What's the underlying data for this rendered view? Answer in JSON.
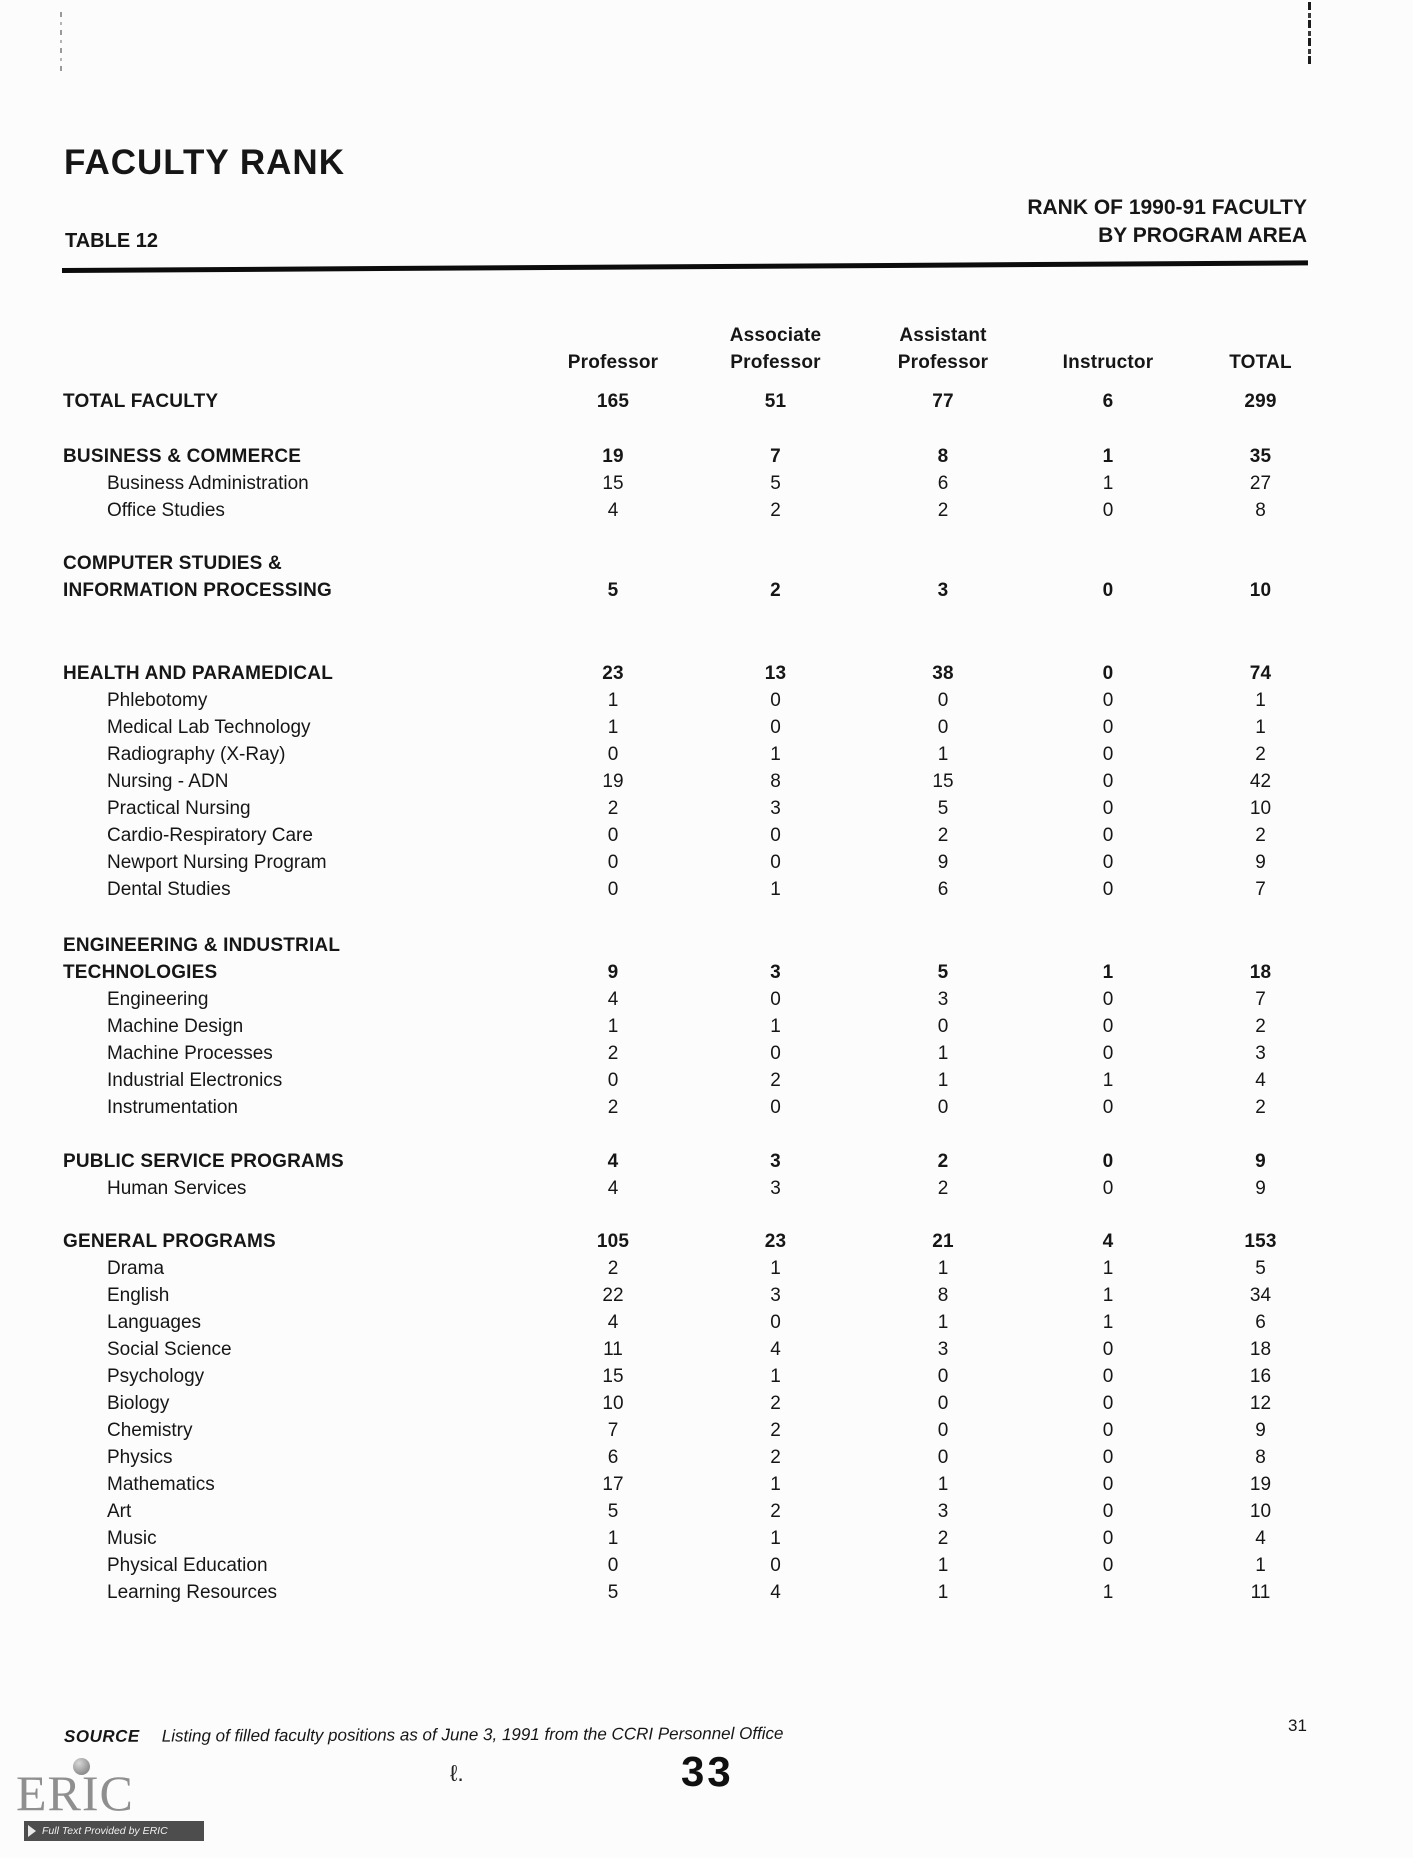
{
  "document": {
    "title": "FACULTY RANK",
    "table_label": "TABLE 12",
    "heading_right": {
      "line1": "RANK OF 1990-91 FACULTY",
      "line2": "BY PROGRAM AREA"
    },
    "source": {
      "label": "SOURCE",
      "text": "Listing of filled faculty positions as of June 3, 1991 from the CCRI Personnel Office"
    },
    "page_number": "31",
    "stamp_mark": "ℓ.",
    "stamp_number": "33",
    "eric_logo": {
      "name": "ERIC",
      "tagline": "Full Text Provided by ERIC"
    },
    "colors": {
      "ink": "#161616",
      "paper": "#fcfcfc",
      "logo_gray": "#8f8f8f"
    }
  },
  "table": {
    "column_header": {
      "line1": [
        "",
        "Associate",
        "Assistant",
        "",
        ""
      ],
      "line2": [
        "Professor",
        "Professor",
        "Professor",
        "Instructor",
        "TOTAL"
      ]
    },
    "rows": [
      {
        "lines": [
          "TOTAL FACULTY"
        ],
        "bold": true,
        "indent": false,
        "gap": 12,
        "values": [
          "165",
          "51",
          "77",
          "6",
          "299"
        ]
      },
      {
        "lines": [
          "BUSINESS & COMMERCE"
        ],
        "bold": true,
        "indent": false,
        "gap": 28,
        "values": [
          "19",
          "7",
          "8",
          "1",
          "35"
        ]
      },
      {
        "lines": [
          "Business Administration"
        ],
        "bold": false,
        "indent": true,
        "gap": 0,
        "values": [
          "15",
          "5",
          "6",
          "1",
          "27"
        ]
      },
      {
        "lines": [
          "Office Studies"
        ],
        "bold": false,
        "indent": true,
        "gap": 0,
        "values": [
          "4",
          "2",
          "2",
          "0",
          "8"
        ]
      },
      {
        "lines": [
          "COMPUTER STUDIES &",
          "INFORMATION PROCESSING"
        ],
        "bold": true,
        "indent": false,
        "gap": 26,
        "values": [
          "5",
          "2",
          "3",
          "0",
          "10"
        ]
      },
      {
        "lines": [
          "HEALTH AND PARAMEDICAL"
        ],
        "bold": true,
        "indent": false,
        "gap": 56,
        "values": [
          "23",
          "13",
          "38",
          "0",
          "74"
        ]
      },
      {
        "lines": [
          "Phlebotomy"
        ],
        "bold": false,
        "indent": true,
        "gap": 0,
        "values": [
          "1",
          "0",
          "0",
          "0",
          "1"
        ]
      },
      {
        "lines": [
          "Medical Lab Technology"
        ],
        "bold": false,
        "indent": true,
        "gap": 0,
        "values": [
          "1",
          "0",
          "0",
          "0",
          "1"
        ]
      },
      {
        "lines": [
          "Radiography (X-Ray)"
        ],
        "bold": false,
        "indent": true,
        "gap": 0,
        "values": [
          "0",
          "1",
          "1",
          "0",
          "2"
        ]
      },
      {
        "lines": [
          "Nursing - ADN"
        ],
        "bold": false,
        "indent": true,
        "gap": 0,
        "values": [
          "19",
          "8",
          "15",
          "0",
          "42"
        ]
      },
      {
        "lines": [
          "Practical Nursing"
        ],
        "bold": false,
        "indent": true,
        "gap": 0,
        "values": [
          "2",
          "3",
          "5",
          "0",
          "10"
        ]
      },
      {
        "lines": [
          "Cardio-Respiratory Care"
        ],
        "bold": false,
        "indent": true,
        "gap": 0,
        "values": [
          "0",
          "0",
          "2",
          "0",
          "2"
        ]
      },
      {
        "lines": [
          "Newport Nursing Program"
        ],
        "bold": false,
        "indent": true,
        "gap": 0,
        "values": [
          "0",
          "0",
          "9",
          "0",
          "9"
        ]
      },
      {
        "lines": [
          "Dental Studies"
        ],
        "bold": false,
        "indent": true,
        "gap": 0,
        "values": [
          "0",
          "1",
          "6",
          "0",
          "7"
        ]
      },
      {
        "lines": [
          "ENGINEERING & INDUSTRIAL",
          "TECHNOLOGIES"
        ],
        "bold": true,
        "indent": false,
        "gap": 29,
        "values": [
          "9",
          "3",
          "5",
          "1",
          "18"
        ]
      },
      {
        "lines": [
          "Engineering"
        ],
        "bold": false,
        "indent": true,
        "gap": 0,
        "values": [
          "4",
          "0",
          "3",
          "0",
          "7"
        ]
      },
      {
        "lines": [
          "Machine Design"
        ],
        "bold": false,
        "indent": true,
        "gap": 0,
        "values": [
          "1",
          "1",
          "0",
          "0",
          "2"
        ]
      },
      {
        "lines": [
          "Machine Processes"
        ],
        "bold": false,
        "indent": true,
        "gap": 0,
        "values": [
          "2",
          "0",
          "1",
          "0",
          "3"
        ]
      },
      {
        "lines": [
          "Industrial Electronics"
        ],
        "bold": false,
        "indent": true,
        "gap": 0,
        "values": [
          "0",
          "2",
          "1",
          "1",
          "4"
        ]
      },
      {
        "lines": [
          "Instrumentation"
        ],
        "bold": false,
        "indent": true,
        "gap": 0,
        "values": [
          "2",
          "0",
          "0",
          "0",
          "2"
        ]
      },
      {
        "lines": [
          "PUBLIC SERVICE PROGRAMS"
        ],
        "bold": true,
        "indent": false,
        "gap": 27,
        "values": [
          "4",
          "3",
          "2",
          "0",
          "9"
        ]
      },
      {
        "lines": [
          "Human Services"
        ],
        "bold": false,
        "indent": true,
        "gap": 0,
        "values": [
          "4",
          "3",
          "2",
          "0",
          "9"
        ]
      },
      {
        "lines": [
          "GENERAL PROGRAMS"
        ],
        "bold": true,
        "indent": false,
        "gap": 26,
        "values": [
          "105",
          "23",
          "21",
          "4",
          "153"
        ]
      },
      {
        "lines": [
          "Drama"
        ],
        "bold": false,
        "indent": true,
        "gap": 0,
        "values": [
          "2",
          "1",
          "1",
          "1",
          "5"
        ]
      },
      {
        "lines": [
          "English"
        ],
        "bold": false,
        "indent": true,
        "gap": 0,
        "values": [
          "22",
          "3",
          "8",
          "1",
          "34"
        ]
      },
      {
        "lines": [
          "Languages"
        ],
        "bold": false,
        "indent": true,
        "gap": 0,
        "values": [
          "4",
          "0",
          "1",
          "1",
          "6"
        ]
      },
      {
        "lines": [
          "Social Science"
        ],
        "bold": false,
        "indent": true,
        "gap": 0,
        "values": [
          "11",
          "4",
          "3",
          "0",
          "18"
        ]
      },
      {
        "lines": [
          "Psychology"
        ],
        "bold": false,
        "indent": true,
        "gap": 0,
        "values": [
          "15",
          "1",
          "0",
          "0",
          "16"
        ]
      },
      {
        "lines": [
          "Biology"
        ],
        "bold": false,
        "indent": true,
        "gap": 0,
        "values": [
          "10",
          "2",
          "0",
          "0",
          "12"
        ]
      },
      {
        "lines": [
          "Chemistry"
        ],
        "bold": false,
        "indent": true,
        "gap": 0,
        "values": [
          "7",
          "2",
          "0",
          "0",
          "9"
        ]
      },
      {
        "lines": [
          "Physics"
        ],
        "bold": false,
        "indent": true,
        "gap": 0,
        "values": [
          "6",
          "2",
          "0",
          "0",
          "8"
        ]
      },
      {
        "lines": [
          "Mathematics"
        ],
        "bold": false,
        "indent": true,
        "gap": 0,
        "values": [
          "17",
          "1",
          "1",
          "0",
          "19"
        ]
      },
      {
        "lines": [
          "Art"
        ],
        "bold": false,
        "indent": true,
        "gap": 0,
        "values": [
          "5",
          "2",
          "3",
          "0",
          "10"
        ]
      },
      {
        "lines": [
          "Music"
        ],
        "bold": false,
        "indent": true,
        "gap": 0,
        "values": [
          "1",
          "1",
          "2",
          "0",
          "4"
        ]
      },
      {
        "lines": [
          "Physical Education"
        ],
        "bold": false,
        "indent": true,
        "gap": 0,
        "values": [
          "0",
          "0",
          "1",
          "0",
          "1"
        ]
      },
      {
        "lines": [
          "Learning Resources"
        ],
        "bold": false,
        "indent": true,
        "gap": 0,
        "values": [
          "5",
          "4",
          "1",
          "1",
          "11"
        ]
      }
    ]
  }
}
